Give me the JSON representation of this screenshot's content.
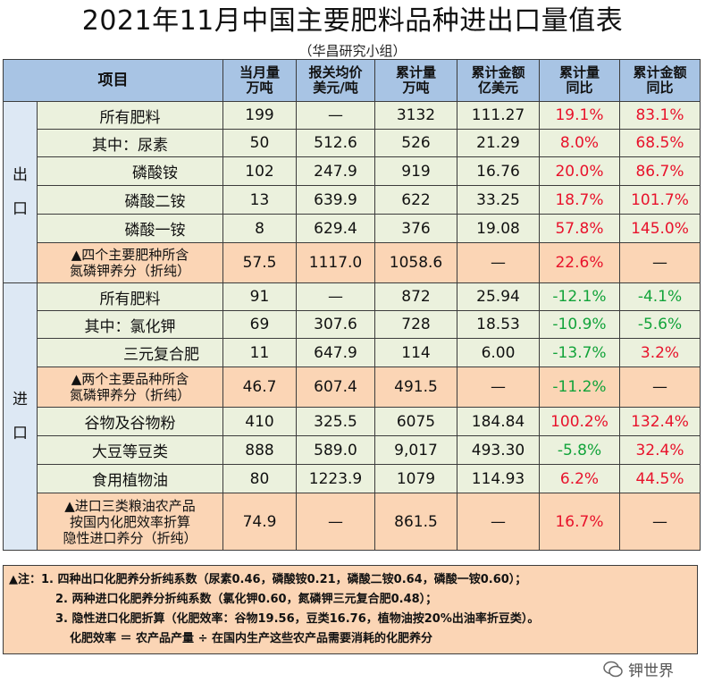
{
  "title": "2021年11月中国主要肥料品种进出口量值表",
  "subtitle": "（华昌研究小组）",
  "headers": {
    "item": "项目",
    "c1a": "当月量",
    "c1b": "万吨",
    "c2a": "报关均价",
    "c2b": "美元/吨",
    "c3a": "累计量",
    "c3b": "万吨",
    "c4a": "累计金额",
    "c4b": "亿美元",
    "c5a": "累计量",
    "c5b": "同比",
    "c6a": "累计金额",
    "c6b": "同比"
  },
  "export_label": [
    "出",
    "口"
  ],
  "import_label": [
    "进",
    "口"
  ],
  "export_rows": [
    {
      "label": "所有肥料",
      "v1": "199",
      "v2": "—",
      "v3": "3132",
      "v4": "111.27",
      "v5": "19.1%",
      "v6": "83.1%"
    },
    {
      "label": "其中：尿素",
      "v1": "50",
      "v2": "512.6",
      "v3": "526",
      "v4": "21.29",
      "v5": "8.0%",
      "v6": "68.5%"
    },
    {
      "label": "磷酸铵",
      "v1": "102",
      "v2": "247.9",
      "v3": "919",
      "v4": "16.76",
      "v5": "20.0%",
      "v6": "86.7%"
    },
    {
      "label": "磷酸二铵",
      "v1": "13",
      "v2": "639.9",
      "v3": "622",
      "v4": "33.25",
      "v5": "18.7%",
      "v6": "101.7%"
    },
    {
      "label": "磷酸一铵",
      "v1": "8",
      "v2": "629.4",
      "v3": "376",
      "v4": "19.08",
      "v5": "57.8%",
      "v6": "145.0%"
    },
    {
      "label_a": "▲四个主要肥种所含",
      "label_b": "氮磷钾养分（折纯）",
      "v1": "57.5",
      "v2": "1117.0",
      "v3": "1058.6",
      "v4": "—",
      "v5": "22.6%",
      "v6": "—"
    }
  ],
  "import_rows": [
    {
      "label": "所有肥料",
      "v1": "91",
      "v2": "—",
      "v3": "872",
      "v4": "25.94",
      "v5": "-12.1%",
      "v6": "-4.1%"
    },
    {
      "label": "其中：氯化钾",
      "v1": "69",
      "v2": "307.6",
      "v3": "728",
      "v4": "18.53",
      "v5": "-10.9%",
      "v6": "-5.6%"
    },
    {
      "label": "三元复合肥",
      "v1": "11",
      "v2": "647.9",
      "v3": "114",
      "v4": "6.00",
      "v5": "-13.7%",
      "v6": "3.2%"
    },
    {
      "label_a": "▲两个主要品种所含",
      "label_b": "氮磷钾养分（折纯）",
      "v1": "46.7",
      "v2": "607.4",
      "v3": "491.5",
      "v4": "—",
      "v5": "-11.2%",
      "v6": "—"
    },
    {
      "label": "谷物及谷物粉",
      "v1": "410",
      "v2": "325.5",
      "v3": "6075",
      "v4": "184.84",
      "v5": "100.2%",
      "v6": "132.4%"
    },
    {
      "label": "大豆等豆类",
      "v1": "888",
      "v2": "589.0",
      "v3": "9,017",
      "v4": "493.30",
      "v5": "-5.8%",
      "v6": "32.4%"
    },
    {
      "label": "食用植物油",
      "v1": "80",
      "v2": "1223.9",
      "v3": "1079",
      "v4": "114.93",
      "v5": "6.2%",
      "v6": "44.5%"
    },
    {
      "label_a": "▲进口三类粮油农产品",
      "label_b": "按国内化肥效率折算",
      "label_c": "隐性进口养分（折纯）",
      "v1": "74.9",
      "v2": "—",
      "v3": "861.5",
      "v4": "—",
      "v5": "16.7%",
      "v6": "—"
    }
  ],
  "notes": {
    "n1": "▲注：1. 四种出口化肥养分折纯系数（尿素0.46，磷酸铵0.21，磷酸二铵0.64，磷酸一铵0.60）；",
    "n2": "2. 两种进口化肥养分折纯系数（氯化钾0.60，氮磷钾三元复合肥0.48）；",
    "n3": "3. 隐性进口化肥折算（化肥效率：谷物19.56，豆类16.76，植物油按20%出油率折豆类）。",
    "n4": "化肥效率 ＝ 农产品产量 ÷ 在国内生产这些农产品需要消耗的化肥养分"
  },
  "watermark": "钾世界",
  "colors": {
    "red": "#e8122b",
    "green": "#12a33a",
    "header": "#a8c4e4",
    "light_green": "#ebf1dd",
    "orange": "#fbd5b5"
  }
}
